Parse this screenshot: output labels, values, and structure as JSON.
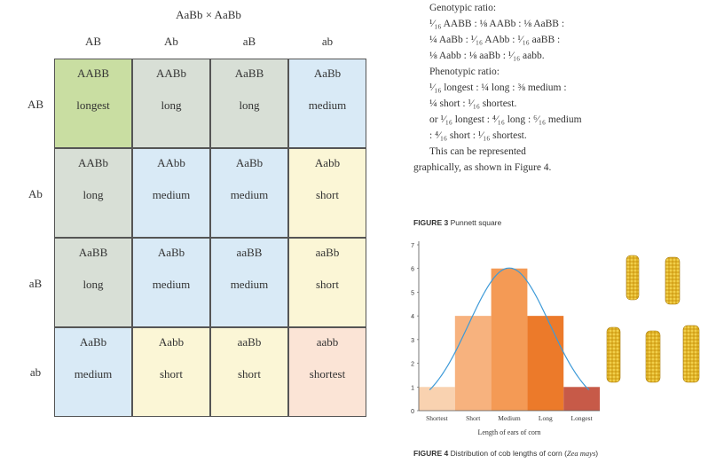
{
  "punnett": {
    "title": "AaBb × AaBb",
    "col_headers": [
      "AB",
      "Ab",
      "aB",
      "ab"
    ],
    "row_headers": [
      "AB",
      "Ab",
      "aB",
      "ab"
    ],
    "rows": [
      [
        {
          "genotype": "AABB",
          "phenotype": "longest",
          "color": "#c9dea2"
        },
        {
          "genotype": "AABb",
          "phenotype": "long",
          "color": "#d8dfd6"
        },
        {
          "genotype": "AaBB",
          "phenotype": "long",
          "color": "#d8dfd6"
        },
        {
          "genotype": "AaBb",
          "phenotype": "medium",
          "color": "#d9eaf6"
        }
      ],
      [
        {
          "genotype": "AABb",
          "phenotype": "long",
          "color": "#d8dfd6"
        },
        {
          "genotype": "AAbb",
          "phenotype": "medium",
          "color": "#d9eaf6"
        },
        {
          "genotype": "AaBb",
          "phenotype": "medium",
          "color": "#d9eaf6"
        },
        {
          "genotype": "Aabb",
          "phenotype": "short",
          "color": "#fbf6d6"
        }
      ],
      [
        {
          "genotype": "AaBB",
          "phenotype": "long",
          "color": "#d8dfd6"
        },
        {
          "genotype": "AaBb",
          "phenotype": "medium",
          "color": "#d9eaf6"
        },
        {
          "genotype": "aaBB",
          "phenotype": "medium",
          "color": "#d9eaf6"
        },
        {
          "genotype": "aaBb",
          "phenotype": "short",
          "color": "#fbf6d6"
        }
      ],
      [
        {
          "genotype": "AaBb",
          "phenotype": "medium",
          "color": "#d9eaf6"
        },
        {
          "genotype": "Aabb",
          "phenotype": "short",
          "color": "#fbf6d6"
        },
        {
          "genotype": "aaBb",
          "phenotype": "short",
          "color": "#fbf6d6"
        },
        {
          "genotype": "aabb",
          "phenotype": "shortest",
          "color": "#fbe4d6"
        }
      ]
    ]
  },
  "text": {
    "genotypic_heading": "Genotypic ratio:",
    "geno_line1": "¹⁄₁₆ AABB : ⅛ AABb : ⅛ AaBB :",
    "geno_line2": "¼ AaBb : ¹⁄₁₆ AAbb : ¹⁄₁₆ aaBB :",
    "geno_line3": "⅛ Aabb : ⅛ aaBb : ¹⁄₁₆ aabb.",
    "phenotypic_heading": "Phenotypic ratio:",
    "pheno_line1": "¹⁄₁₆ longest : ¼ long : ⅜ medium :",
    "pheno_line2": "¼ short : ¹⁄₁₆ shortest.",
    "pheno_line3": "or ¹⁄₁₆ longest : ⁴⁄₁₆ long : ⁶⁄₁₆ medium",
    "pheno_line4": ": ⁴⁄₁₆ short : ¹⁄₁₆ shortest.",
    "represent_line1": "This can be represented",
    "represent_line2": "graphically, as shown in Figure 4."
  },
  "figure3": {
    "label": "FIGURE 3",
    "caption": "Punnett square"
  },
  "figure4": {
    "label": "FIGURE 4",
    "caption_prefix": "Distribution of cob lengths of corn (",
    "caption_italic": "Zea mays",
    "caption_suffix": ")"
  },
  "chart_data": {
    "type": "bar",
    "categories": [
      "Shortest",
      "Short",
      "Medium",
      "Long",
      "Longest"
    ],
    "values": [
      1,
      4,
      6,
      4,
      1
    ],
    "bar_colors": [
      "#f9d2b0",
      "#f7b27e",
      "#f49a55",
      "#ec7a2a",
      "#c75a48"
    ],
    "xlabel": "Length of ears of corn",
    "ylabel": "",
    "ylim": [
      0,
      7
    ],
    "yticks": [
      "0",
      "1",
      "2",
      "3",
      "4",
      "5",
      "6",
      "7"
    ],
    "curve_color": "#3d9ad8",
    "grid": false
  }
}
